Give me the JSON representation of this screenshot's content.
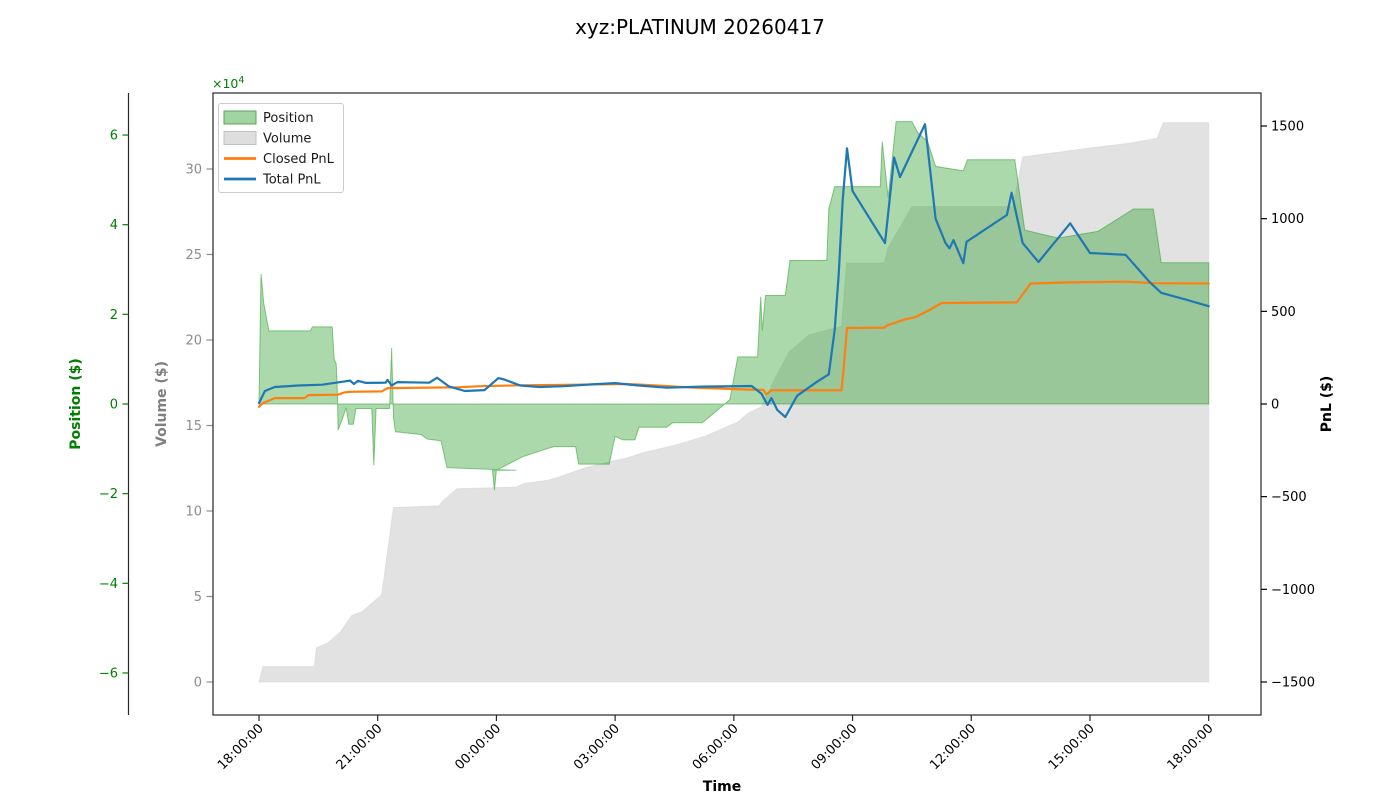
{
  "title": "xyz:PLATINUM 20260417",
  "chart_data": {
    "type": "line",
    "title": "xyz:PLATINUM 20260417",
    "xlabel": "Time",
    "x_unit": "hours since 18:00:00",
    "x_tick_hours": [
      0,
      3,
      6,
      9,
      12,
      15,
      18,
      21,
      24
    ],
    "x_tick_labels": [
      "18:00:00",
      "21:00:00",
      "00:00:00",
      "03:00:00",
      "06:00:00",
      "09:00:00",
      "12:00:00",
      "15:00:00",
      "18:00:00"
    ],
    "x_range_hours": [
      -1.16,
      25.34
    ],
    "grid": false,
    "legend": {
      "position": "upper left",
      "entries": [
        {
          "label": "Position",
          "swatch": "patch",
          "color": "#2ca02c"
        },
        {
          "label": "Volume",
          "swatch": "patch",
          "color": "#d3d3d3"
        },
        {
          "label": "Closed PnL",
          "swatch": "line",
          "color": "#ff7f0e"
        },
        {
          "label": "Total PnL",
          "swatch": "line",
          "color": "#1f77b4"
        }
      ]
    },
    "axes": {
      "position": {
        "label": "Position ($)",
        "side": "far-left",
        "color": "#008000",
        "offset_text": "×10",
        "offset_exp": "4",
        "unit_scale": 10000,
        "tick_values": [
          6,
          4,
          2,
          0,
          -2,
          -4,
          -6
        ],
        "tick_labels": [
          "6",
          "4",
          "2",
          "0",
          "−2",
          "−4",
          "−6"
        ],
        "range": [
          -6.95,
          6.95
        ]
      },
      "volume": {
        "label": "Volume ($)",
        "side": "left",
        "color": "#8c8c8c",
        "unit_scale": 10000,
        "tick_values": [
          30,
          25,
          20,
          15,
          10,
          5,
          0
        ],
        "tick_labels": [
          "30",
          "25",
          "20",
          "15",
          "10",
          "5",
          "0"
        ],
        "range": [
          -1.93,
          34.45
        ]
      },
      "pnl": {
        "label": "PnL ($)",
        "side": "right",
        "color": "#000000",
        "unit_scale": 1,
        "tick_values": [
          1500,
          1000,
          500,
          0,
          -500,
          -1000,
          -1500
        ],
        "tick_labels": [
          "1500",
          "1000",
          "500",
          "0",
          "−500",
          "−1000",
          "−1500"
        ],
        "range": [
          -1678,
          1678
        ]
      }
    },
    "series": [
      {
        "name": "Position",
        "axis": "position",
        "style": "area",
        "color": "#2ca02c",
        "fill_opacity": 0.4,
        "points": [
          [
            0,
            0
          ],
          [
            0.05,
            2.9
          ],
          [
            0.12,
            2.25
          ],
          [
            0.25,
            1.63
          ],
          [
            1.3,
            1.63
          ],
          [
            1.35,
            1.72
          ],
          [
            1.85,
            1.72
          ],
          [
            1.9,
            1.0
          ],
          [
            1.95,
            0.9
          ],
          [
            1.98,
            0.3
          ],
          [
            2.0,
            -0.58
          ],
          [
            2.12,
            -0.3
          ],
          [
            2.2,
            -0.08
          ],
          [
            2.27,
            -0.45
          ],
          [
            2.38,
            -0.45
          ],
          [
            2.45,
            -0.1
          ],
          [
            2.85,
            -0.1
          ],
          [
            2.9,
            -1.37
          ],
          [
            2.96,
            -0.1
          ],
          [
            3.3,
            -0.1
          ],
          [
            3.35,
            1.25
          ],
          [
            3.4,
            -0.3
          ],
          [
            3.45,
            -0.62
          ],
          [
            4.1,
            -0.68
          ],
          [
            4.25,
            -0.78
          ],
          [
            4.6,
            -0.82
          ],
          [
            4.75,
            -1.42
          ],
          [
            6.5,
            -1.48
          ],
          [
            5.9,
            -1.48
          ],
          [
            5.95,
            -1.92
          ],
          [
            6.0,
            -1.48
          ],
          [
            6.65,
            -1.18
          ],
          [
            7.2,
            -1.02
          ],
          [
            7.45,
            -0.95
          ],
          [
            8.0,
            -0.95
          ],
          [
            8.08,
            -1.34
          ],
          [
            8.85,
            -1.34
          ],
          [
            9.0,
            -0.72
          ],
          [
            9.2,
            -0.8
          ],
          [
            9.5,
            -0.8
          ],
          [
            9.6,
            -0.52
          ],
          [
            10.3,
            -0.52
          ],
          [
            10.45,
            -0.42
          ],
          [
            11.2,
            -0.42
          ],
          [
            11.5,
            -0.2
          ],
          [
            11.9,
            0.1
          ],
          [
            12.1,
            1.05
          ],
          [
            12.6,
            1.05
          ],
          [
            12.68,
            2.39
          ],
          [
            12.72,
            1.64
          ],
          [
            12.8,
            2.42
          ],
          [
            13.3,
            2.42
          ],
          [
            13.42,
            3.2
          ],
          [
            14.35,
            3.2
          ],
          [
            14.4,
            4.35
          ],
          [
            14.55,
            4.85
          ],
          [
            15.7,
            4.85
          ],
          [
            15.75,
            5.85
          ],
          [
            15.9,
            4.6
          ],
          [
            16.1,
            6.3
          ],
          [
            16.5,
            6.3
          ],
          [
            16.65,
            6.05
          ],
          [
            16.9,
            5.85
          ],
          [
            17.1,
            5.3
          ],
          [
            17.8,
            5.2
          ],
          [
            17.9,
            5.45
          ],
          [
            19.1,
            5.45
          ],
          [
            19.35,
            3.88
          ],
          [
            20.2,
            3.7
          ],
          [
            21.2,
            3.85
          ],
          [
            22.1,
            4.35
          ],
          [
            22.6,
            4.35
          ],
          [
            22.8,
            3.15
          ],
          [
            24,
            3.15
          ]
        ]
      },
      {
        "name": "Volume",
        "axis": "volume",
        "style": "area",
        "color": "#d3d3d3",
        "fill_opacity": 0.65,
        "points": [
          [
            0,
            0
          ],
          [
            0.1,
            0.9
          ],
          [
            1.4,
            0.9
          ],
          [
            1.45,
            2.0
          ],
          [
            1.75,
            2.3
          ],
          [
            2.05,
            2.9
          ],
          [
            2.35,
            3.9
          ],
          [
            2.6,
            4.1
          ],
          [
            2.95,
            4.8
          ],
          [
            3.1,
            5.1
          ],
          [
            3.4,
            10.2
          ],
          [
            4.55,
            10.3
          ],
          [
            4.65,
            10.6
          ],
          [
            5.0,
            11.3
          ],
          [
            6.5,
            11.4
          ],
          [
            6.7,
            11.6
          ],
          [
            7.3,
            11.8
          ],
          [
            7.6,
            12.0
          ],
          [
            8.2,
            12.5
          ],
          [
            8.9,
            12.9
          ],
          [
            9.3,
            13.1
          ],
          [
            9.7,
            13.4
          ],
          [
            10.6,
            13.9
          ],
          [
            11.3,
            14.4
          ],
          [
            12.1,
            15.2
          ],
          [
            12.35,
            15.7
          ],
          [
            12.7,
            16.1
          ],
          [
            13.05,
            17.8
          ],
          [
            13.4,
            19.3
          ],
          [
            13.9,
            20.3
          ],
          [
            14.72,
            20.8
          ],
          [
            14.85,
            24.5
          ],
          [
            15.8,
            24.5
          ],
          [
            15.9,
            25.4
          ],
          [
            16.2,
            26.6
          ],
          [
            16.5,
            27.8
          ],
          [
            19.05,
            27.8
          ],
          [
            19.3,
            30.7
          ],
          [
            20.9,
            31.2
          ],
          [
            22.0,
            31.5
          ],
          [
            22.7,
            31.8
          ],
          [
            22.85,
            32.7
          ],
          [
            24,
            32.7
          ]
        ]
      },
      {
        "name": "Closed PnL",
        "axis": "pnl",
        "style": "line",
        "color": "#ff7f0e",
        "points": [
          [
            0,
            -15
          ],
          [
            0.1,
            5
          ],
          [
            0.4,
            32
          ],
          [
            1.15,
            32
          ],
          [
            1.25,
            48
          ],
          [
            2.0,
            50
          ],
          [
            2.15,
            62
          ],
          [
            2.3,
            66
          ],
          [
            3.1,
            68
          ],
          [
            3.25,
            86
          ],
          [
            5.0,
            90
          ],
          [
            5.6,
            96
          ],
          [
            6.6,
            101
          ],
          [
            8.0,
            104
          ],
          [
            9.3,
            108
          ],
          [
            10.2,
            98
          ],
          [
            11.0,
            88
          ],
          [
            12.3,
            78
          ],
          [
            12.75,
            76
          ],
          [
            12.82,
            52
          ],
          [
            12.95,
            74
          ],
          [
            14.72,
            74
          ],
          [
            14.78,
            200
          ],
          [
            14.86,
            410
          ],
          [
            15.8,
            412
          ],
          [
            15.88,
            425
          ],
          [
            16.1,
            440
          ],
          [
            16.3,
            455
          ],
          [
            16.6,
            470
          ],
          [
            16.95,
            508
          ],
          [
            17.25,
            545
          ],
          [
            19.15,
            548
          ],
          [
            19.5,
            650
          ],
          [
            20.5,
            656
          ],
          [
            21.9,
            660
          ],
          [
            22.6,
            652
          ],
          [
            24,
            650
          ]
        ]
      },
      {
        "name": "Total PnL",
        "axis": "pnl",
        "style": "line",
        "color": "#1f77b4",
        "points": [
          [
            0,
            5
          ],
          [
            0.15,
            70
          ],
          [
            0.4,
            92
          ],
          [
            1.0,
            100
          ],
          [
            1.6,
            104
          ],
          [
            2.1,
            120
          ],
          [
            2.3,
            126
          ],
          [
            2.4,
            108
          ],
          [
            2.5,
            125
          ],
          [
            2.7,
            114
          ],
          [
            3.2,
            115
          ],
          [
            3.25,
            130
          ],
          [
            3.35,
            100
          ],
          [
            3.5,
            118
          ],
          [
            4.3,
            115
          ],
          [
            4.5,
            142
          ],
          [
            4.8,
            95
          ],
          [
            5.2,
            70
          ],
          [
            5.7,
            75
          ],
          [
            6.05,
            140
          ],
          [
            6.2,
            132
          ],
          [
            6.6,
            100
          ],
          [
            7.1,
            92
          ],
          [
            7.7,
            96
          ],
          [
            8.4,
            106
          ],
          [
            9.0,
            113
          ],
          [
            9.6,
            100
          ],
          [
            10.3,
            88
          ],
          [
            11.2,
            94
          ],
          [
            12.45,
            97
          ],
          [
            12.7,
            55
          ],
          [
            12.85,
            -5
          ],
          [
            12.95,
            32
          ],
          [
            13.1,
            -33
          ],
          [
            13.3,
            -70
          ],
          [
            13.6,
            45
          ],
          [
            14.1,
            120
          ],
          [
            14.4,
            160
          ],
          [
            14.55,
            400
          ],
          [
            14.65,
            700
          ],
          [
            14.75,
            1100
          ],
          [
            14.86,
            1380
          ],
          [
            15.0,
            1150
          ],
          [
            15.82,
            868
          ],
          [
            16.05,
            1330
          ],
          [
            16.2,
            1225
          ],
          [
            16.83,
            1510
          ],
          [
            17.1,
            1000
          ],
          [
            17.35,
            868
          ],
          [
            17.45,
            840
          ],
          [
            17.55,
            884
          ],
          [
            17.8,
            760
          ],
          [
            17.88,
            875
          ],
          [
            18.9,
            1020
          ],
          [
            19.02,
            1140
          ],
          [
            19.3,
            868
          ],
          [
            19.7,
            766
          ],
          [
            20.5,
            975
          ],
          [
            21.0,
            815
          ],
          [
            21.9,
            805
          ],
          [
            22.5,
            660
          ],
          [
            22.8,
            600
          ],
          [
            23.4,
            565
          ],
          [
            24,
            528
          ]
        ]
      }
    ]
  }
}
